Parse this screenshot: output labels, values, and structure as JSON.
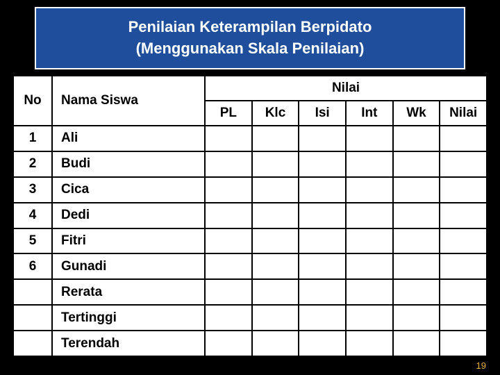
{
  "title": {
    "line1": "Penilaian Keterampilan Berpidato",
    "line2": "(Menggunakan Skala Penilaian)"
  },
  "table": {
    "headers": {
      "no": "No",
      "name": "Nama Siswa",
      "nilai": "Nilai",
      "cols": [
        "PL",
        "Klc",
        "Isi",
        "Int",
        "Wk",
        "Nilai"
      ]
    },
    "rows": [
      {
        "no": "1",
        "name": "Ali"
      },
      {
        "no": "2",
        "name": "Budi"
      },
      {
        "no": "3",
        "name": "Cica"
      },
      {
        "no": "4",
        "name": "Dedi"
      },
      {
        "no": "5",
        "name": "Fitri"
      },
      {
        "no": "6",
        "name": "Gunadi"
      }
    ],
    "summary": [
      "Rerata",
      "Tertinggi",
      "Terendah"
    ]
  },
  "page_number": "19",
  "colors": {
    "title_bg": "#1f4e9c",
    "title_border": "#ffffff",
    "page_bg": "#000000",
    "table_bg": "#ffffff",
    "border": "#000000",
    "page_num": "#e8b030"
  }
}
